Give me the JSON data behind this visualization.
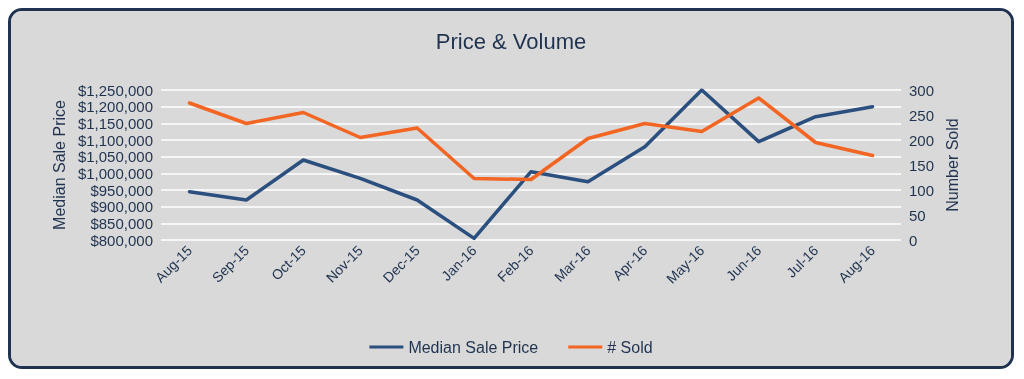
{
  "chart_data": {
    "type": "line",
    "title": "Price & Volume",
    "ylabel": "Median Sale Price",
    "y2label": "Number Sold",
    "categories": [
      "Aug-15",
      "Sep-15",
      "Oct-15",
      "Nov-15",
      "Dec-15",
      "Jan-16",
      "Feb-16",
      "Mar-16",
      "Apr-16",
      "May-16",
      "Jun-16",
      "Jul-16",
      "Aug-16"
    ],
    "series": [
      {
        "name": "Median Sale Price",
        "color": "#2b4f7e",
        "values": [
          945000,
          920000,
          1040000,
          985000,
          920000,
          805000,
          1005000,
          975000,
          1080000,
          1250000,
          1095000,
          1170000,
          1200000
        ]
      },
      {
        "name": "# Sold",
        "color": "#f26522",
        "axis": "y2",
        "values": [
          274,
          233,
          255,
          205,
          224,
          123,
          121,
          203,
          233,
          217,
          284,
          195,
          169
        ]
      }
    ],
    "ylim": [
      800000,
      1250000
    ],
    "yticks": [
      {
        "value": 800000,
        "label": "$800,000"
      },
      {
        "value": 850000,
        "label": "$850,000"
      },
      {
        "value": 900000,
        "label": "$900,000"
      },
      {
        "value": 950000,
        "label": "$950,000"
      },
      {
        "value": 1000000,
        "label": "$1,000,000"
      },
      {
        "value": 1050000,
        "label": "$1,050,000"
      },
      {
        "value": 1100000,
        "label": "$1,100,000"
      },
      {
        "value": 1150000,
        "label": "$1,150,000"
      },
      {
        "value": 1200000,
        "label": "$1,200,000"
      },
      {
        "value": 1250000,
        "label": "$1,250,000"
      }
    ],
    "y2lim": [
      0,
      300
    ],
    "y2ticks": [
      0,
      50,
      100,
      150,
      200,
      250,
      300
    ],
    "grid": "y",
    "legend": "bottom",
    "marker": "none",
    "line_style": "solid"
  }
}
